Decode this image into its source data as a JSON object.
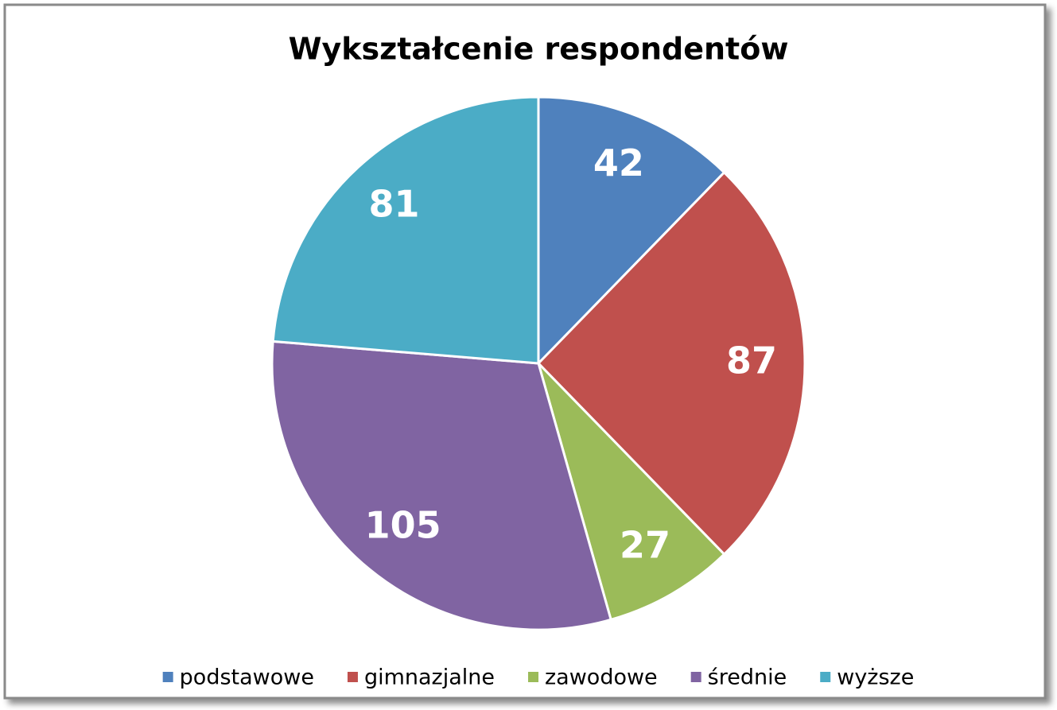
{
  "chart_data": {
    "type": "pie",
    "title": "Wykształcenie respondentów",
    "categories": [
      "podstawowe",
      "gimnazjalne",
      "zawodowe",
      "średnie",
      "wyższe"
    ],
    "values": [
      42,
      87,
      27,
      105,
      81
    ],
    "colors": [
      "#4f81bd",
      "#c0504d",
      "#9bbb59",
      "#8064a2",
      "#4bacc6"
    ],
    "legend": "bottom"
  }
}
